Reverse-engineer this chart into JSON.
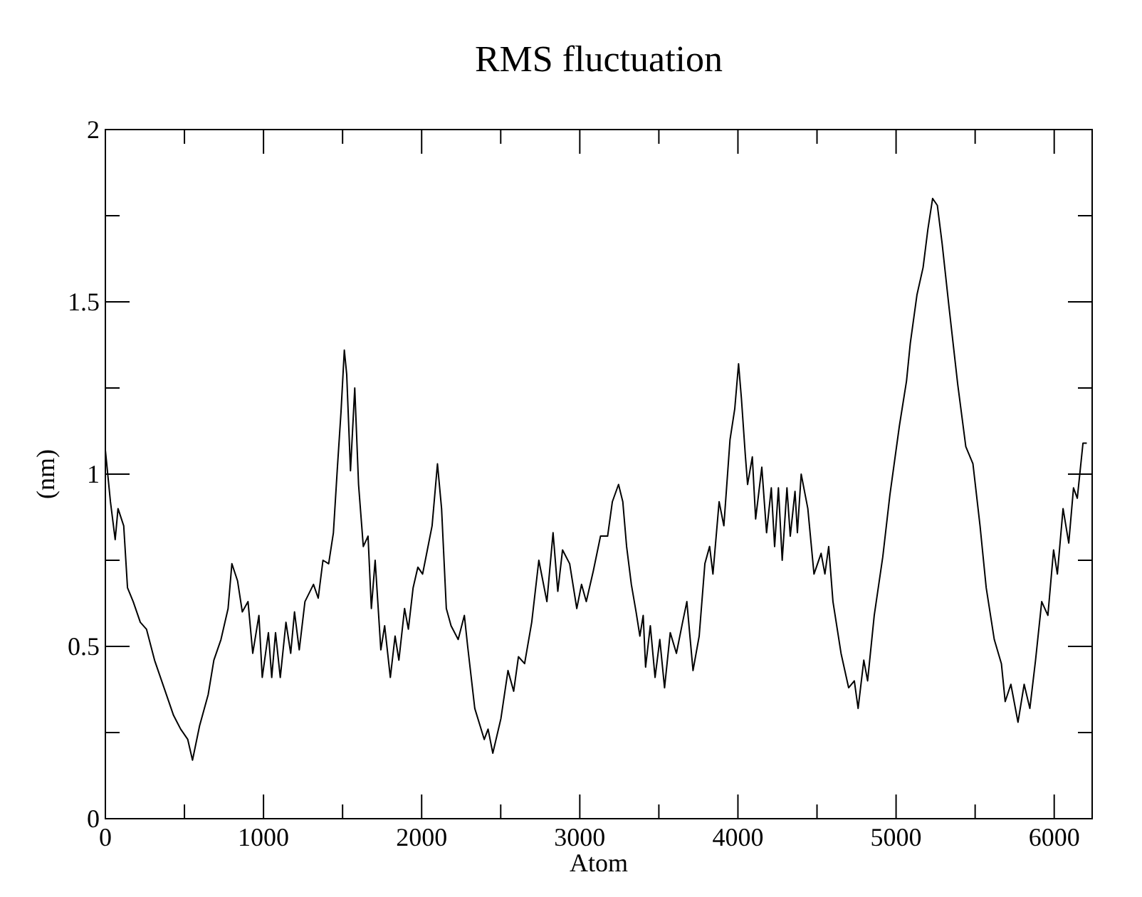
{
  "chart_data": {
    "type": "line",
    "title": "RMS fluctuation",
    "xlabel": "Atom",
    "ylabel": "(nm)",
    "xlim": [
      0,
      6240
    ],
    "ylim": [
      0,
      2
    ],
    "xticks": [
      0,
      {
        "value": 500,
        "label": null
      },
      1000,
      {
        "value": 1500,
        "label": null
      },
      2000,
      {
        "value": 2500,
        "label": null
      },
      3000,
      {
        "value": 3500,
        "label": null
      },
      4000,
      {
        "value": 4500,
        "label": null
      },
      5000,
      {
        "value": 5500,
        "label": null
      },
      6000
    ],
    "yticks": [
      0,
      {
        "value": 0.25,
        "label": null
      },
      0.5,
      {
        "value": 0.75,
        "label": null
      },
      1,
      {
        "value": 1.25,
        "label": null
      },
      1.5,
      {
        "value": 1.75,
        "label": null
      },
      2
    ],
    "grid": false,
    "marker": "none",
    "line_style": "solid",
    "series": [
      {
        "color": "#000000",
        "x": [
          0,
          32,
          62,
          80,
          116,
          140,
          176,
          221,
          260,
          311,
          371,
          431,
          476,
          521,
          551,
          596,
          650,
          686,
          731,
          776,
          800,
          836,
          866,
          902,
          932,
          971,
          992,
          1031,
          1052,
          1076,
          1106,
          1142,
          1172,
          1196,
          1226,
          1262,
          1316,
          1346,
          1376,
          1412,
          1442,
          1466,
          1490,
          1511,
          1526,
          1550,
          1577,
          1601,
          1631,
          1661,
          1682,
          1706,
          1742,
          1766,
          1802,
          1832,
          1856,
          1892,
          1916,
          1946,
          1976,
          2006,
          2036,
          2066,
          2100,
          2126,
          2156,
          2186,
          2231,
          2270,
          2291,
          2336,
          2396,
          2420,
          2450,
          2501,
          2546,
          2582,
          2612,
          2651,
          2696,
          2741,
          2792,
          2831,
          2861,
          2891,
          2936,
          2981,
          3011,
          3041,
          3086,
          3131,
          3176,
          3206,
          3245,
          3272,
          3296,
          3326,
          3356,
          3380,
          3401,
          3416,
          3446,
          3476,
          3506,
          3536,
          3572,
          3611,
          3650,
          3677,
          3716,
          3755,
          3791,
          3821,
          3842,
          3881,
          3911,
          3950,
          3980,
          4004,
          4022,
          4046,
          4061,
          4091,
          4112,
          4151,
          4181,
          4211,
          4232,
          4256,
          4280,
          4310,
          4331,
          4361,
          4376,
          4400,
          4442,
          4481,
          4526,
          4550,
          4574,
          4601,
          4652,
          4700,
          4736,
          4760,
          4796,
          4820,
          4862,
          4916,
          4961,
          5021,
          5066,
          5090,
          5132,
          5171,
          5201,
          5231,
          5261,
          5291,
          5336,
          5390,
          5441,
          5486,
          5531,
          5570,
          5621,
          5666,
          5690,
          5726,
          5771,
          5810,
          5846,
          5882,
          5921,
          5960,
          5996,
          6020,
          6056,
          6092,
          6122,
          6146,
          6182,
          6206
        ],
        "values": [
          1.07,
          0.92,
          0.81,
          0.9,
          0.85,
          0.67,
          0.63,
          0.57,
          0.55,
          0.46,
          0.38,
          0.3,
          0.26,
          0.23,
          0.17,
          0.27,
          0.36,
          0.46,
          0.52,
          0.61,
          0.74,
          0.69,
          0.6,
          0.63,
          0.48,
          0.59,
          0.41,
          0.54,
          0.41,
          0.54,
          0.41,
          0.57,
          0.48,
          0.6,
          0.49,
          0.63,
          0.68,
          0.64,
          0.75,
          0.74,
          0.83,
          1.01,
          1.18,
          1.36,
          1.29,
          1.01,
          1.25,
          0.97,
          0.79,
          0.82,
          0.61,
          0.75,
          0.49,
          0.56,
          0.41,
          0.53,
          0.46,
          0.61,
          0.55,
          0.67,
          0.73,
          0.71,
          0.78,
          0.85,
          1.03,
          0.9,
          0.61,
          0.56,
          0.52,
          0.59,
          0.5,
          0.32,
          0.23,
          0.26,
          0.19,
          0.29,
          0.43,
          0.37,
          0.47,
          0.45,
          0.57,
          0.75,
          0.63,
          0.83,
          0.66,
          0.78,
          0.74,
          0.61,
          0.68,
          0.63,
          0.72,
          0.82,
          0.82,
          0.92,
          0.97,
          0.92,
          0.79,
          0.68,
          0.6,
          0.53,
          0.59,
          0.44,
          0.56,
          0.41,
          0.52,
          0.38,
          0.54,
          0.48,
          0.57,
          0.63,
          0.43,
          0.53,
          0.74,
          0.79,
          0.71,
          0.92,
          0.85,
          1.1,
          1.19,
          1.32,
          1.22,
          1.06,
          0.97,
          1.05,
          0.87,
          1.02,
          0.83,
          0.96,
          0.79,
          0.96,
          0.75,
          0.96,
          0.82,
          0.95,
          0.83,
          1.0,
          0.9,
          0.71,
          0.77,
          0.71,
          0.79,
          0.63,
          0.48,
          0.38,
          0.4,
          0.32,
          0.46,
          0.4,
          0.59,
          0.76,
          0.94,
          1.14,
          1.27,
          1.38,
          1.52,
          1.6,
          1.71,
          1.8,
          1.78,
          1.67,
          1.48,
          1.26,
          1.08,
          1.03,
          0.85,
          0.67,
          0.52,
          0.45,
          0.34,
          0.39,
          0.28,
          0.39,
          0.32,
          0.46,
          0.63,
          0.59,
          0.78,
          0.71,
          0.9,
          0.8,
          0.96,
          0.93,
          1.09,
          1.09
        ]
      }
    ]
  }
}
